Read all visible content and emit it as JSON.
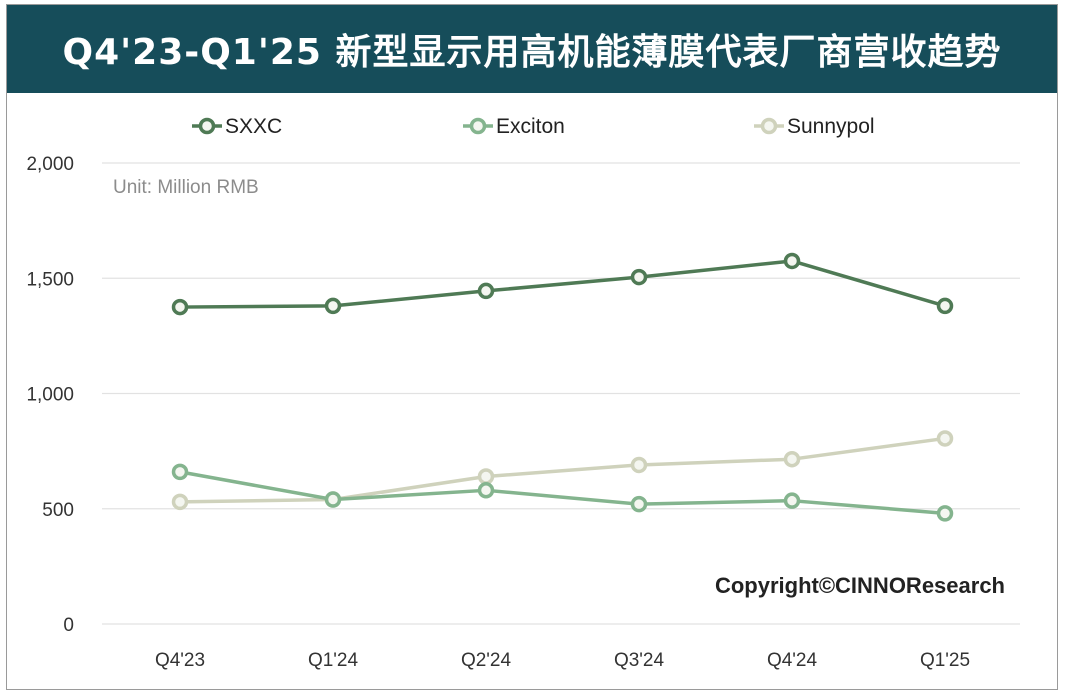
{
  "header": {
    "title": "Q4'23-Q1'25 新型显示用高机能薄膜代表厂商营收趋势"
  },
  "unit_label": "Unit: Million RMB",
  "copyright": "Copyright©CINNOResearch",
  "chart_data": {
    "type": "line",
    "title": "Q4'23-Q1'25 新型显示用高机能薄膜代表厂商营收趋势",
    "xlabel": "",
    "ylabel": "",
    "ylim": [
      0,
      2000
    ],
    "yticks": [
      0,
      500,
      1000,
      1500,
      2000
    ],
    "ytick_labels": [
      "0",
      "500",
      "1,000",
      "1,500",
      "2,000"
    ],
    "grid": true,
    "legend": "top",
    "categories": [
      "Q4'23",
      "Q1'24",
      "Q2'24",
      "Q3'24",
      "Q4'24",
      "Q1'25"
    ],
    "series": [
      {
        "name": "SXXC",
        "color": "#4f7a55",
        "values": [
          1375,
          1380,
          1445,
          1505,
          1575,
          1380
        ]
      },
      {
        "name": "Exciton",
        "color": "#84b48e",
        "values": [
          660,
          540,
          580,
          520,
          535,
          480
        ]
      },
      {
        "name": "Sunnypol",
        "color": "#cfd2bc",
        "values": [
          530,
          540,
          640,
          690,
          715,
          805
        ]
      }
    ]
  }
}
